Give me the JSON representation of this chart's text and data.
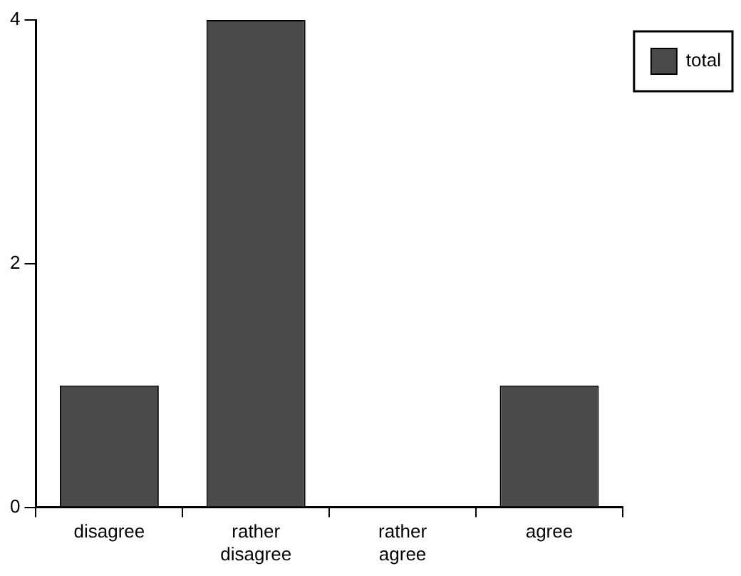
{
  "chart_data": {
    "type": "bar",
    "categories": [
      "disagree",
      "rather disagree",
      "rather agree",
      "agree"
    ],
    "series": [
      {
        "name": "total",
        "color": "#4a4a4a",
        "values": [
          1,
          4,
          0,
          1
        ]
      }
    ],
    "ylim": [
      0,
      4
    ],
    "yticks": [
      0,
      2,
      4
    ],
    "grid": false,
    "legend": "top right"
  }
}
